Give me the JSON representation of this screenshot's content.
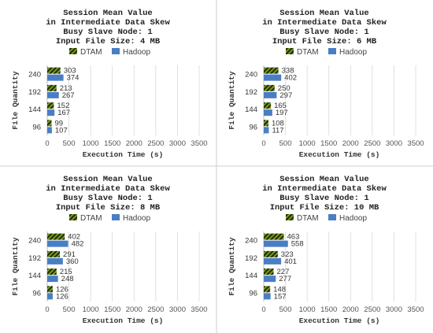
{
  "colors": {
    "dtam_fg": "#7a9a1e",
    "dtam_bg": "#1f2a0a",
    "hadoop": "#4a7ec4",
    "divider": "#cfcfcf",
    "grid": "#d9d9d9"
  },
  "chart_data": [
    {
      "type": "bar",
      "orientation": "horizontal",
      "title": [
        "Session Mean Value",
        "in Intermediate Data Skew",
        "Busy Slave Node: 1",
        "Input File Size: 4 MB"
      ],
      "xlabel": "Execution Time (s)",
      "ylabel": "File Quantity",
      "categories": [
        "96",
        "144",
        "192",
        "240"
      ],
      "xlim": [
        0,
        3500
      ],
      "xticks": [
        0,
        500,
        1000,
        1500,
        2000,
        2500,
        3000,
        3500
      ],
      "legend": "top",
      "series": [
        {
          "name": "DTAM",
          "values": [
            99,
            152,
            213,
            303
          ]
        },
        {
          "name": "Hadoop",
          "values": [
            107,
            167,
            267,
            374
          ]
        }
      ]
    },
    {
      "type": "bar",
      "orientation": "horizontal",
      "title": [
        "Session Mean Value",
        "in Intermediate Data Skew",
        "Busy Slave Node: 1",
        "Input File Size: 6 MB"
      ],
      "xlabel": "Execution Time (s)",
      "ylabel": "File Quantity",
      "categories": [
        "96",
        "144",
        "192",
        "240"
      ],
      "xlim": [
        0,
        3500
      ],
      "xticks": [
        0,
        500,
        1000,
        1500,
        2000,
        2500,
        3000,
        3500
      ],
      "legend": "top",
      "series": [
        {
          "name": "DTAM",
          "values": [
            108,
            165,
            250,
            338
          ]
        },
        {
          "name": "Hadoop",
          "values": [
            117,
            197,
            297,
            402
          ]
        }
      ]
    },
    {
      "type": "bar",
      "orientation": "horizontal",
      "title": [
        "Session Mean Value",
        "in Intermediate Data Skew",
        "Busy Slave Node: 1",
        "Input File Size: 8 MB"
      ],
      "xlabel": "Execution Time (s)",
      "ylabel": "File Quantity",
      "categories": [
        "96",
        "144",
        "192",
        "240"
      ],
      "xlim": [
        0,
        3500
      ],
      "xticks": [
        0,
        500,
        1000,
        1500,
        2000,
        2500,
        3000,
        3500
      ],
      "legend": "top",
      "series": [
        {
          "name": "DTAM",
          "values": [
            126,
            215,
            291,
            402
          ]
        },
        {
          "name": "Hadoop",
          "values": [
            126,
            248,
            360,
            482
          ]
        }
      ]
    },
    {
      "type": "bar",
      "orientation": "horizontal",
      "title": [
        "Session Mean Value",
        "in Intermediate Data Skew",
        "Busy Slave Node: 1",
        "Input File Size: 10 MB"
      ],
      "xlabel": "Execution Time (s)",
      "ylabel": "File Quantity",
      "categories": [
        "96",
        "144",
        "192",
        "240"
      ],
      "xlim": [
        0,
        3500
      ],
      "xticks": [
        0,
        500,
        1000,
        1500,
        2000,
        2500,
        3000,
        3500
      ],
      "legend": "top",
      "series": [
        {
          "name": "DTAM",
          "values": [
            148,
            227,
            323,
            463
          ]
        },
        {
          "name": "Hadoop",
          "values": [
            157,
            277,
            401,
            558
          ]
        }
      ]
    }
  ]
}
